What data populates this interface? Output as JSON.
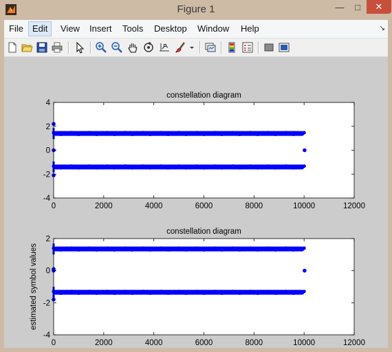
{
  "window": {
    "title": "Figure 1"
  },
  "menu": {
    "items": [
      "File",
      "Edit",
      "View",
      "Insert",
      "Tools",
      "Desktop",
      "Window",
      "Help"
    ],
    "active_index": 1
  },
  "toolbar": {
    "icons": [
      "new-figure-icon",
      "open-file-icon",
      "save-icon",
      "print-icon",
      "pointer-icon",
      "zoom-in-icon",
      "zoom-out-icon",
      "pan-icon",
      "rotate-3d-icon",
      "data-cursor-icon",
      "brush-icon",
      "brush-dropdown-icon",
      "link-plot-icon",
      "insert-colorbar-icon",
      "insert-legend-icon",
      "hide-plot-tools-icon",
      "show-plot-tools-icon"
    ]
  },
  "colors": {
    "marker": "#0000ff",
    "plot_bg": "#ffffff",
    "figure_bg": "#cccccc"
  },
  "chart_data": [
    {
      "type": "scatter",
      "title": "constellation diagram",
      "xlabel": "",
      "ylabel": "",
      "xlim": [
        0,
        12000
      ],
      "ylim": [
        -4,
        4
      ],
      "xticks": [
        0,
        2000,
        4000,
        6000,
        8000,
        10000,
        12000
      ],
      "yticks": [
        -4,
        -2,
        0,
        2,
        4
      ],
      "series": [
        {
          "x_range": [
            0,
            10000
          ],
          "y": 1.4
        },
        {
          "x_range": [
            0,
            10000
          ],
          "y": -1.4
        }
      ],
      "points": [
        [
          10020,
          0
        ],
        [
          0,
          2.2
        ],
        [
          0,
          -2.1
        ],
        [
          0,
          0
        ]
      ]
    },
    {
      "type": "scatter",
      "title": "constellation diagram",
      "xlabel": "",
      "ylabel": "estimated symbol values",
      "xlim": [
        0,
        12000
      ],
      "ylim": [
        -4,
        2
      ],
      "xticks": [
        0,
        2000,
        4000,
        6000,
        8000,
        10000,
        12000
      ],
      "yticks": [
        -4,
        -2,
        0,
        2
      ],
      "series": [
        {
          "x_range": [
            0,
            10000
          ],
          "y": 1.35
        },
        {
          "x_range": [
            0,
            10000
          ],
          "y": -1.35
        }
      ],
      "points": [
        [
          10020,
          0
        ],
        [
          0,
          0
        ],
        [
          0,
          -1.8
        ],
        [
          0,
          0.1
        ]
      ]
    }
  ]
}
